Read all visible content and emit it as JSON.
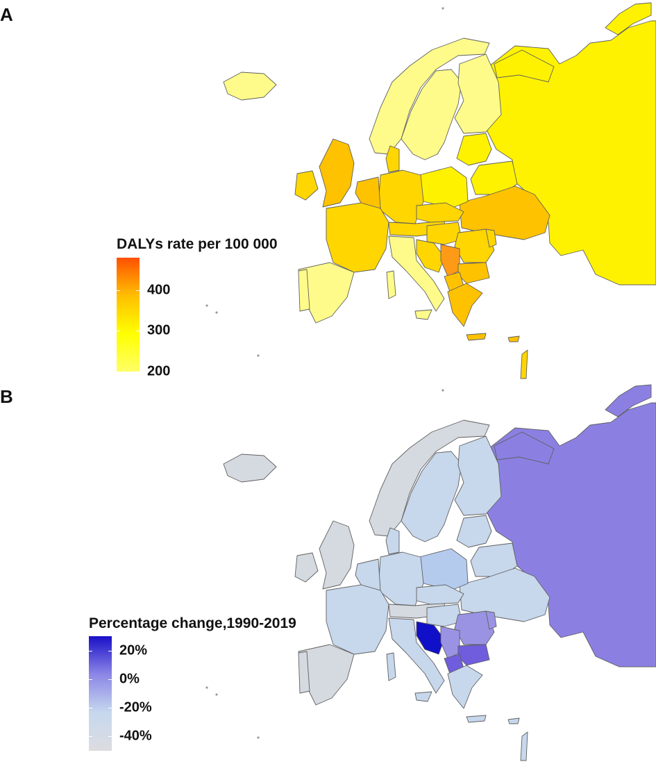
{
  "panel_a": {
    "letter": "A",
    "legend": {
      "title": "DALYs rate per 100 000",
      "ticks": [
        {
          "label": "400",
          "value": 400
        },
        {
          "label": "300",
          "value": 300
        },
        {
          "label": "200",
          "value": 200
        }
      ],
      "range": [
        200,
        480
      ],
      "colors": [
        "#ffff66",
        "#ffff00",
        "#ffbf00",
        "#ff5000"
      ]
    },
    "palette": {
      "pale": "#fffb8a",
      "yellow": "#fff200",
      "gold": "#ffd600",
      "amber": "#ffc200",
      "orange": "#ff9a17"
    }
  },
  "panel_b": {
    "letter": "B",
    "legend": {
      "title": "Percentage change,1990-2019",
      "ticks": [
        {
          "label": "20%",
          "value": 20
        },
        {
          "label": "0%",
          "value": 0
        },
        {
          "label": "-20%",
          "value": -20
        },
        {
          "label": "-40%",
          "value": -40
        }
      ],
      "range": [
        -50,
        30
      ],
      "colors": [
        "#dcdce0",
        "#c6d8ee",
        "#8c86e6",
        "#1a10c8"
      ]
    },
    "palette": {
      "grey": "#d5d9e0",
      "lightblue": "#c7d7ec",
      "midblue": "#b4cbee",
      "lavender": "#9a93e4",
      "violet": "#8b80e2",
      "indigo": "#6f5ddd",
      "deep": "#1010c8"
    }
  },
  "map_styles": {
    "border": "#5f5f5f"
  }
}
